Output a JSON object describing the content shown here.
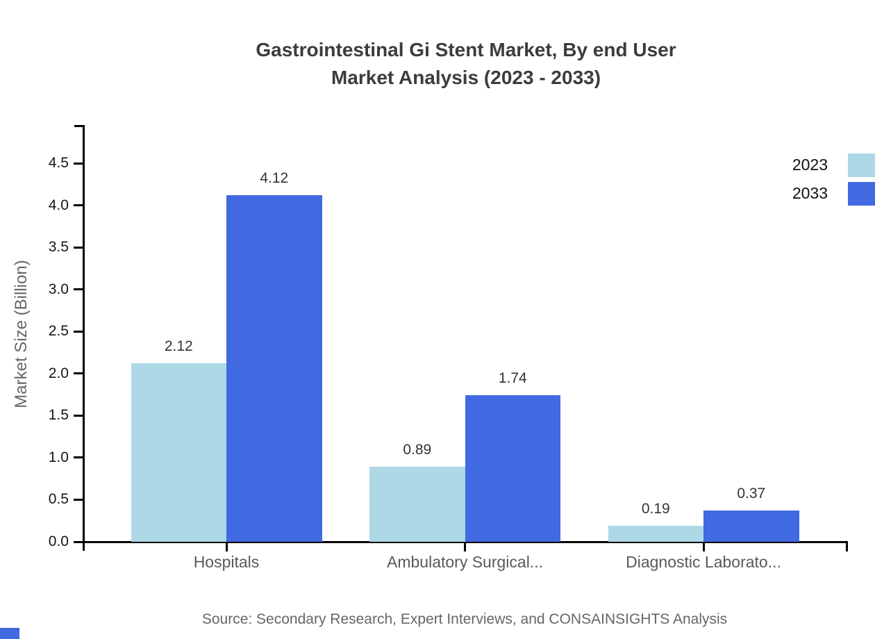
{
  "title": {
    "line1": "Gastrointestinal Gi Stent Market, By end User",
    "line2": "Market Analysis (2023 - 2033)"
  },
  "y_axis": {
    "label": "Market Size (Billion)",
    "ticks": [
      "0.0",
      "0.5",
      "1.0",
      "1.5",
      "2.0",
      "2.5",
      "3.0",
      "3.5",
      "4.0",
      "4.5"
    ]
  },
  "legend": [
    {
      "label": "2023",
      "color": "#ADD8E6"
    },
    {
      "label": "2033",
      "color": "#4169E1"
    }
  ],
  "source": "Source: Secondary Research, Expert Interviews, and CONSAINSIGHTS Analysis",
  "brand_color": "#4169E1",
  "chart_data": {
    "type": "bar",
    "categories": [
      "Hospitals",
      "Ambulatory Surgical...",
      "Diagnostic Laborato..."
    ],
    "series": [
      {
        "name": "2023",
        "color": "#ADD8E6",
        "values": [
          2.12,
          0.89,
          0.19
        ]
      },
      {
        "name": "2033",
        "color": "#4169E1",
        "values": [
          4.12,
          1.74,
          0.37
        ]
      }
    ],
    "title": "Gastrointestinal Gi Stent Market, By end User Market Analysis (2023 - 2033)",
    "xlabel": "",
    "ylabel": "Market Size (Billion)",
    "ylim": [
      0,
      4.95
    ],
    "grid": false,
    "legend_position": "top-right",
    "value_labels": true
  }
}
